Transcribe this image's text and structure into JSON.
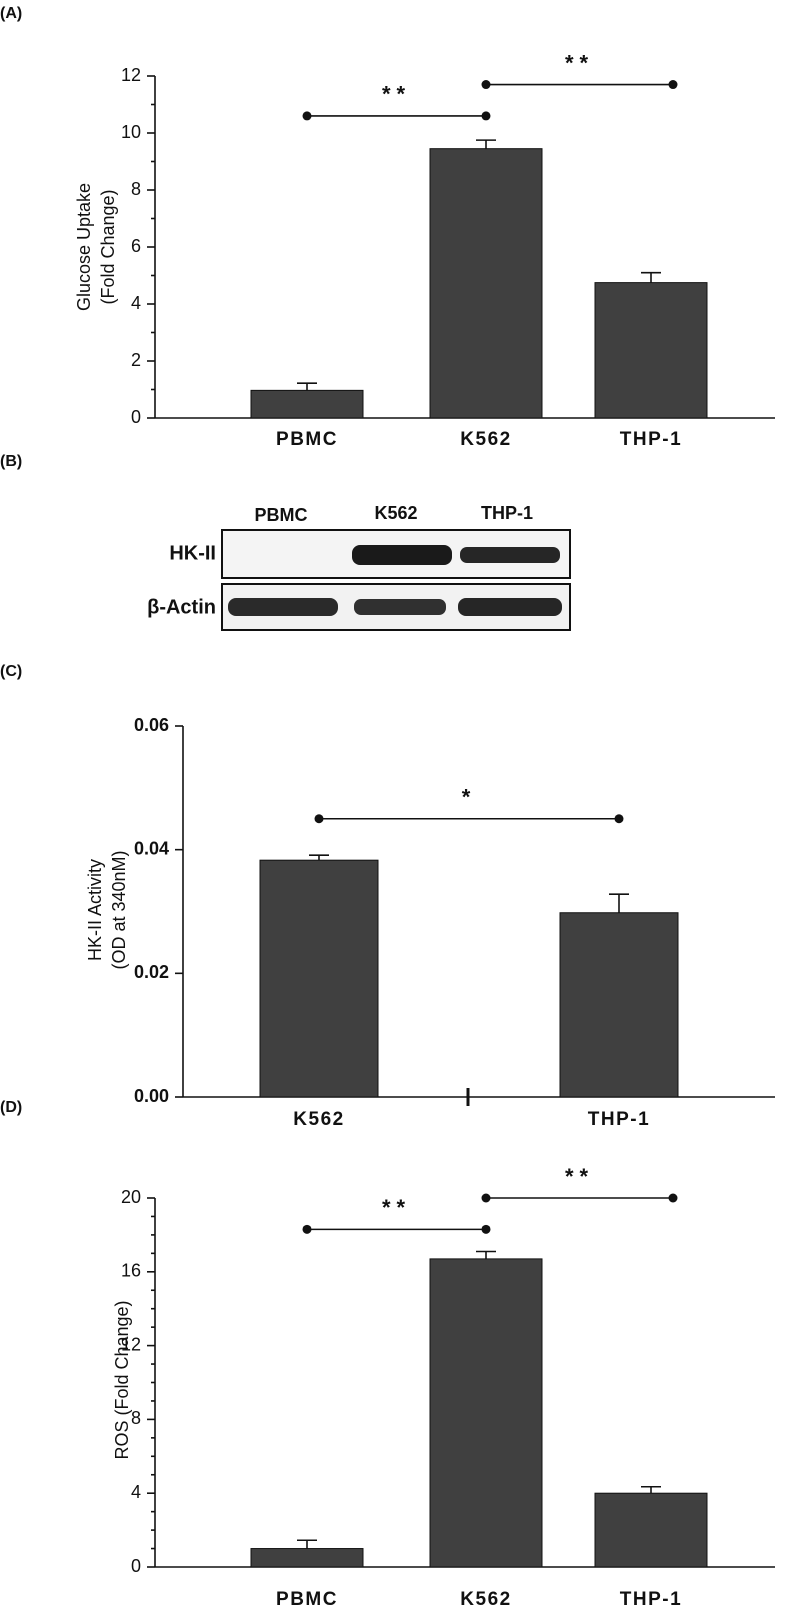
{
  "chart_data": [
    {
      "type": "bar",
      "panel": "(A)",
      "ylabel": [
        "Glucose Uptake",
        "(Fold Change)"
      ],
      "categories": [
        "PBMC",
        "K562",
        "THP-1"
      ],
      "values": [
        0.97,
        9.45,
        4.75
      ],
      "errors": [
        0.25,
        0.3,
        0.35
      ],
      "color": "#404040",
      "ylim": [
        0,
        12
      ],
      "yticks": [
        0,
        2,
        4,
        6,
        8,
        10,
        12
      ],
      "minor_per_major": 1,
      "annotations": [
        {
          "text": "**",
          "from": 0,
          "to": 1,
          "y": 10.6
        },
        {
          "text": "**",
          "from": 1,
          "to": 2,
          "y": 11.7
        }
      ]
    },
    {
      "type": "bar",
      "panel": "(C)",
      "ylabel": [
        "HK-II Activity",
        "(OD at 340nM)"
      ],
      "categories": [
        "K562",
        "THP-1"
      ],
      "values": [
        0.0383,
        0.0298
      ],
      "errors": [
        0.0008,
        0.003
      ],
      "color": "#404040",
      "ylim": [
        0,
        0.06
      ],
      "yticks": [
        {
          "value": 0,
          "label": "0.00"
        },
        0.02,
        0.04,
        0.06
      ],
      "minor_per_major": 0,
      "annotations": [
        {
          "text": "*",
          "from": 0,
          "to": 1,
          "y": 0.045
        }
      ]
    },
    {
      "type": "bar",
      "panel": "(D)",
      "ylabel": [
        "ROS (Fold Change)"
      ],
      "categories": [
        "PBMC",
        "K562",
        "THP-1"
      ],
      "values": [
        1.0,
        16.7,
        4.0
      ],
      "errors": [
        0.45,
        0.4,
        0.35
      ],
      "color": "#404040",
      "ylim": [
        0,
        20
      ],
      "yticks": [
        0,
        4,
        8,
        12,
        16,
        20
      ],
      "minor_per_major": 3,
      "annotations": [
        {
          "text": "**",
          "from": 0,
          "to": 1,
          "y": 18.3
        },
        {
          "text": "**",
          "from": 1,
          "to": 2,
          "y": 20
        }
      ]
    }
  ],
  "blot": {
    "panel": "(B)",
    "columns": [
      "PBMC",
      "K562",
      "THP-1"
    ],
    "rows": [
      "HK-II",
      "β-Actin"
    ]
  }
}
